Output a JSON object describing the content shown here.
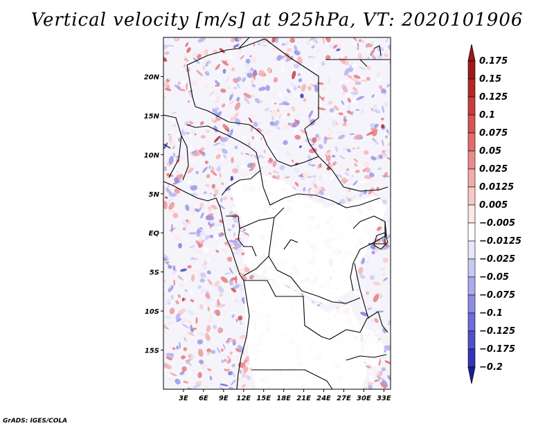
{
  "title": "Vertical velocity [m/s] at 925hPa, VT: 2020101906",
  "footer": "GrADS: IGES/COLA",
  "map": {
    "lon_range": [
      0,
      34
    ],
    "lat_range": [
      -20,
      25
    ],
    "lat_labels": [
      {
        "lat": 20,
        "text": "20N"
      },
      {
        "lat": 15,
        "text": "15N"
      },
      {
        "lat": 10,
        "text": "10N"
      },
      {
        "lat": 5,
        "text": "5N"
      },
      {
        "lat": 0,
        "text": "EQ"
      },
      {
        "lat": -5,
        "text": "5S"
      },
      {
        "lat": -10,
        "text": "10S"
      },
      {
        "lat": -15,
        "text": "15S"
      }
    ],
    "lon_labels": [
      {
        "lon": 3,
        "text": "3E"
      },
      {
        "lon": 6,
        "text": "6E"
      },
      {
        "lon": 9,
        "text": "9E"
      },
      {
        "lon": 12,
        "text": "12E"
      },
      {
        "lon": 15,
        "text": "15E"
      },
      {
        "lon": 18,
        "text": "18E"
      },
      {
        "lon": 21,
        "text": "21E"
      },
      {
        "lon": 24,
        "text": "24E"
      },
      {
        "lon": 27,
        "text": "27E"
      },
      {
        "lon": 30,
        "text": "30E"
      },
      {
        "lon": 33,
        "text": "33E"
      }
    ]
  },
  "colorbar": {
    "levels": [
      {
        "label": "0.175",
        "color": "#a01818"
      },
      {
        "label": "0.15",
        "color": "#b42828"
      },
      {
        "label": "0.125",
        "color": "#c83c3c"
      },
      {
        "label": "0.1",
        "color": "#d85454"
      },
      {
        "label": "0.075",
        "color": "#e06c6c"
      },
      {
        "label": "0.05",
        "color": "#ea8c8c"
      },
      {
        "label": "0.025",
        "color": "#f4aaaa"
      },
      {
        "label": "0.0125",
        "color": "#f8c8c8"
      },
      {
        "label": "0.005",
        "color": "#fce6e6"
      },
      {
        "label": "−0.005",
        "color": "#ffffff"
      },
      {
        "label": "−0.0125",
        "color": "#e6e6fc"
      },
      {
        "label": "−0.025",
        "color": "#c8c8f4"
      },
      {
        "label": "−0.05",
        "color": "#aaaaee"
      },
      {
        "label": "−0.075",
        "color": "#8c8ce4"
      },
      {
        "label": "−0.1",
        "color": "#6c6cdc"
      },
      {
        "label": "−0.125",
        "color": "#5050cc"
      },
      {
        "label": "−0.175",
        "color": "#3434b8"
      },
      {
        "label": "−0.2",
        "color": "#1c1ca0"
      }
    ],
    "top_color": "#a01818",
    "bottom_color": "#1c1ca0"
  }
}
